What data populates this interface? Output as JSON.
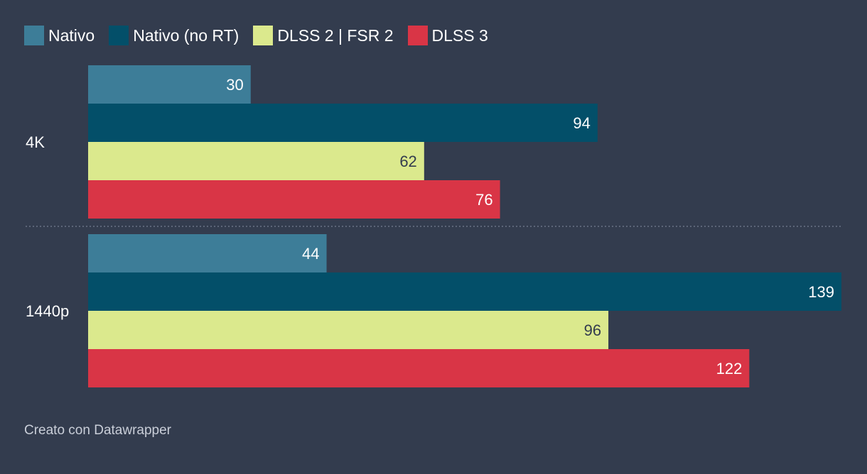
{
  "chart_data": {
    "type": "bar",
    "orientation": "horizontal",
    "categories": [
      "4K",
      "1440p"
    ],
    "series": [
      {
        "name": "Nativo",
        "color": "#3d7d98",
        "values": [
          30,
          44
        ]
      },
      {
        "name": "Nativo (no RT)",
        "color": "#034f69",
        "values": [
          94,
          139
        ]
      },
      {
        "name": "DLSS 2 | FSR 2",
        "color": "#dbe98d",
        "values": [
          62,
          96
        ]
      },
      {
        "name": "DLSS 3",
        "color": "#d93546",
        "values": [
          76,
          122
        ]
      }
    ],
    "xlim": [
      0,
      139
    ],
    "legend_position": "top-left",
    "title": "",
    "xlabel": "",
    "ylabel": ""
  },
  "footer": {
    "credit": "Creato con Datawrapper"
  },
  "colors": {
    "background": "#333c4e",
    "label_light": "#ffffff",
    "label_dark": "#333c4e",
    "separator": "#6b7385"
  }
}
